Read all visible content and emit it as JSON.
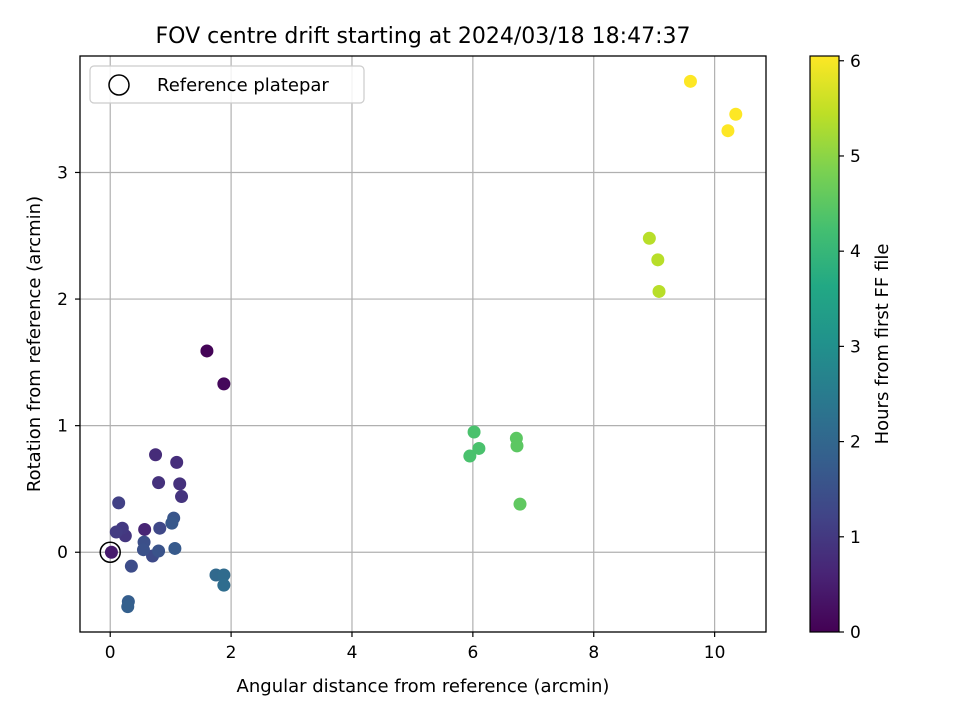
{
  "chart_data": {
    "type": "scatter",
    "title": "FOV centre drift starting at 2024/03/18 18:47:37",
    "xlabel": "Angular distance from reference (arcmin)",
    "ylabel": "Rotation from reference (arcmin)",
    "xlim": [
      -0.5,
      10.85
    ],
    "ylim": [
      -0.63,
      3.92
    ],
    "xticks": [
      0,
      2,
      4,
      6,
      8,
      10
    ],
    "yticks": [
      0,
      1,
      2,
      3
    ],
    "grid": true,
    "colormap": "viridis",
    "colorbar": {
      "label": "Hours from first FF file",
      "range": [
        0,
        6.05
      ],
      "ticks": [
        0,
        1,
        2,
        3,
        4,
        5,
        6
      ]
    },
    "legend": {
      "placement": "upper-left",
      "entries": [
        "Reference platepar"
      ]
    },
    "reference_point": {
      "x": 0,
      "y": 0
    },
    "points": [
      {
        "x": 1.6,
        "y": 1.59,
        "hours": 0.05
      },
      {
        "x": 1.88,
        "y": 1.33,
        "hours": 0.12
      },
      {
        "x": 0.02,
        "y": 0.0,
        "hours": 0.45
      },
      {
        "x": 0.57,
        "y": 0.18,
        "hours": 0.62
      },
      {
        "x": 0.75,
        "y": 0.77,
        "hours": 0.75
      },
      {
        "x": 1.1,
        "y": 0.71,
        "hours": 0.8
      },
      {
        "x": 0.8,
        "y": 0.55,
        "hours": 0.85
      },
      {
        "x": 1.15,
        "y": 0.54,
        "hours": 0.85
      },
      {
        "x": 1.18,
        "y": 0.44,
        "hours": 0.9
      },
      {
        "x": 0.25,
        "y": 0.13,
        "hours": 0.95
      },
      {
        "x": 0.2,
        "y": 0.19,
        "hours": 1.0
      },
      {
        "x": 0.1,
        "y": 0.16,
        "hours": 1.05
      },
      {
        "x": 0.14,
        "y": 0.39,
        "hours": 1.15
      },
      {
        "x": 0.82,
        "y": 0.19,
        "hours": 1.3
      },
      {
        "x": 0.7,
        "y": -0.03,
        "hours": 1.35
      },
      {
        "x": 0.35,
        "y": -0.11,
        "hours": 1.4
      },
      {
        "x": 0.56,
        "y": 0.08,
        "hours": 1.45
      },
      {
        "x": 0.55,
        "y": 0.02,
        "hours": 1.5
      },
      {
        "x": 0.8,
        "y": 0.01,
        "hours": 1.55
      },
      {
        "x": 1.05,
        "y": 0.27,
        "hours": 1.6
      },
      {
        "x": 1.02,
        "y": 0.23,
        "hours": 1.65
      },
      {
        "x": 1.07,
        "y": 0.03,
        "hours": 1.7
      },
      {
        "x": 0.3,
        "y": -0.39,
        "hours": 1.8
      },
      {
        "x": 0.29,
        "y": -0.43,
        "hours": 1.85
      },
      {
        "x": 1.75,
        "y": -0.18,
        "hours": 2.05
      },
      {
        "x": 1.88,
        "y": -0.18,
        "hours": 2.1
      },
      {
        "x": 1.88,
        "y": -0.26,
        "hours": 2.15
      },
      {
        "x": 6.02,
        "y": 0.95,
        "hours": 4.3
      },
      {
        "x": 6.1,
        "y": 0.82,
        "hours": 4.3
      },
      {
        "x": 5.95,
        "y": 0.76,
        "hours": 4.3
      },
      {
        "x": 6.72,
        "y": 0.9,
        "hours": 4.5
      },
      {
        "x": 6.73,
        "y": 0.84,
        "hours": 4.5
      },
      {
        "x": 6.78,
        "y": 0.38,
        "hours": 4.55
      },
      {
        "x": 8.92,
        "y": 2.48,
        "hours": 5.4
      },
      {
        "x": 9.06,
        "y": 2.31,
        "hours": 5.4
      },
      {
        "x": 9.08,
        "y": 2.06,
        "hours": 5.4
      },
      {
        "x": 9.6,
        "y": 3.72,
        "hours": 6.05
      },
      {
        "x": 10.35,
        "y": 3.46,
        "hours": 6.05
      },
      {
        "x": 10.22,
        "y": 3.33,
        "hours": 6.05
      }
    ]
  }
}
